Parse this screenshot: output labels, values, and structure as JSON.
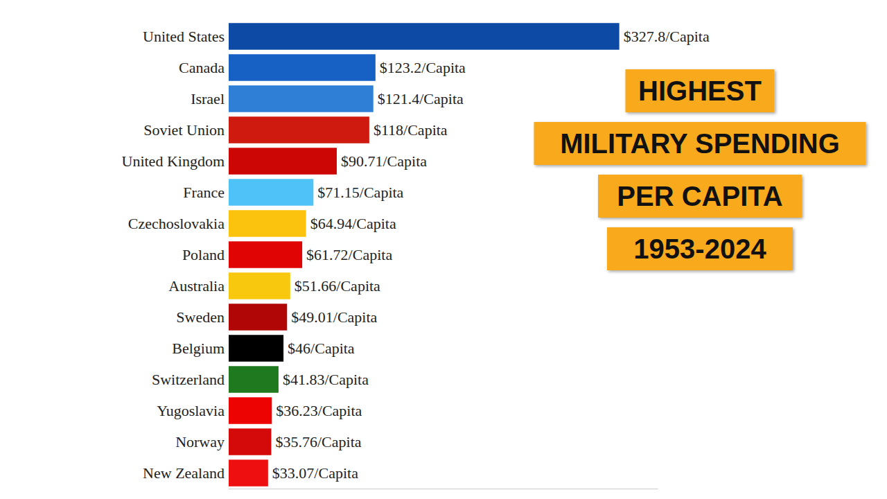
{
  "chart_data": {
    "type": "bar",
    "title": "HIGHEST\nMILITARY SPENDING\nPER CAPITA",
    "subtitle": "1953-2024",
    "orientation": "horizontal",
    "categories": [
      "United States",
      "Canada",
      "Israel",
      "Soviet Union",
      "United Kingdom",
      "France",
      "Czechoslovakia",
      "Poland",
      "Australia",
      "Sweden",
      "Belgium",
      "Switzerland",
      "Yugoslavia",
      "Norway",
      "New Zealand"
    ],
    "values": [
      327.8,
      123.2,
      121.4,
      118,
      90.71,
      71.15,
      64.94,
      61.72,
      51.66,
      49.01,
      46,
      41.83,
      36.23,
      35.76,
      33.07
    ],
    "value_labels": [
      "$327.8/Capita",
      "$123.2/Capita",
      "$121.4/Capita",
      "$118/Capita",
      "$90.71/Capita",
      "$71.15/Capita",
      "$64.94/Capita",
      "$61.72/Capita",
      "$51.66/Capita",
      "$49.01/Capita",
      "$46/Capita",
      "$41.83/Capita",
      "$36.23/Capita",
      "$35.76/Capita",
      "$33.07/Capita"
    ],
    "colors": [
      "#0d4aa6",
      "#1761c4",
      "#2f7fd6",
      "#cf1b0f",
      "#cc0505",
      "#4fc3f7",
      "#fcc30e",
      "#e00404",
      "#f8c80f",
      "#b00606",
      "#000000",
      "#1f7a1f",
      "#ee0303",
      "#d40a0a",
      "#ee1010"
    ],
    "xlim": [
      0,
      360
    ],
    "data_labels": true,
    "tick_labels": "y",
    "grid": false
  }
}
